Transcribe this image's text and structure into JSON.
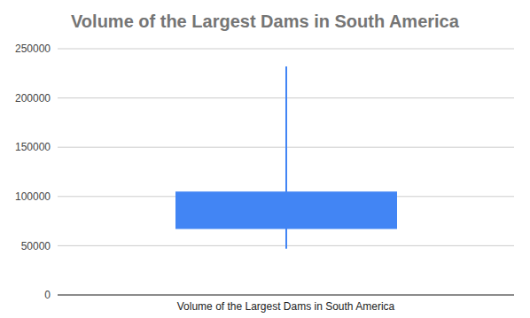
{
  "chart_data": {
    "type": "candlestick",
    "title": "Volume of the Largest Dams in South America",
    "categories": [
      "Volume of the Largest Dams in South America"
    ],
    "low": [
      47000
    ],
    "open": [
      67000
    ],
    "close": [
      105000
    ],
    "high": [
      232000
    ],
    "color": "#4285f4",
    "ylim": [
      0,
      250000
    ],
    "yticks": [
      0,
      50000,
      100000,
      150000,
      200000,
      250000
    ],
    "grid": true
  }
}
